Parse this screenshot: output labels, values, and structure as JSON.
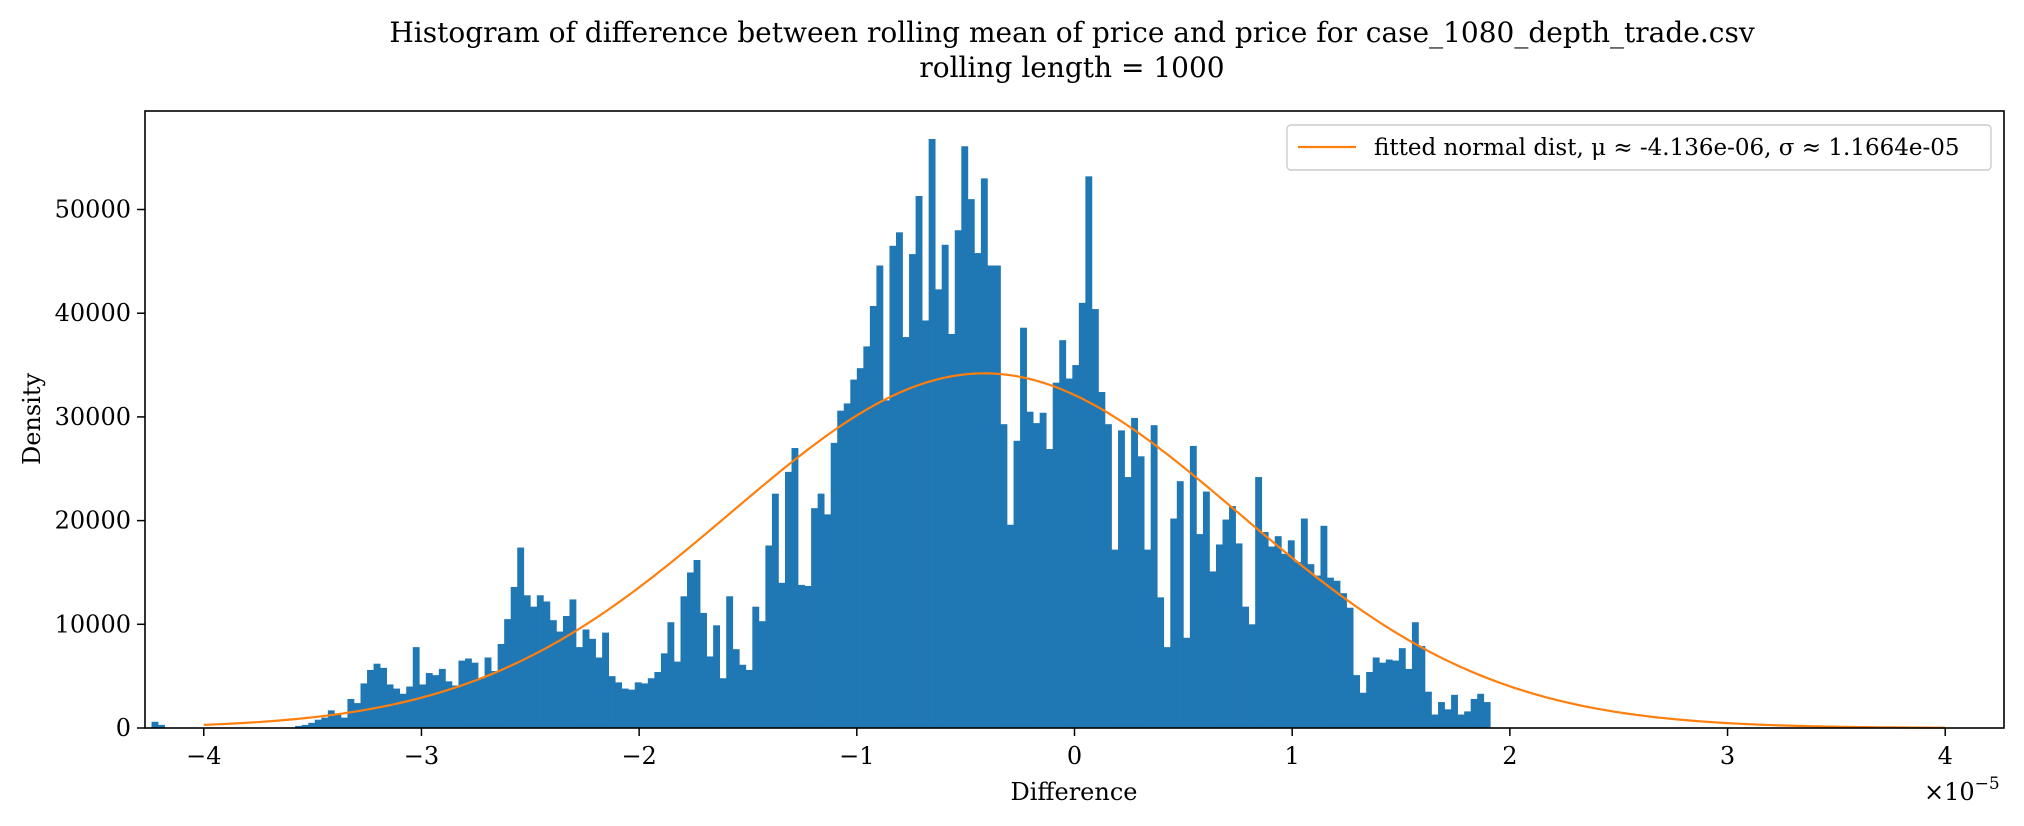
{
  "chart_data": {
    "type": "bar",
    "title": "Histogram of difference between rolling mean of price and price for case_1080_depth_trade.csv",
    "subtitle": "rolling length = 1000",
    "xlabel": "Difference",
    "ylabel": "Density",
    "x_offset_label": "×10",
    "x_offset_exponent": "−5",
    "xlim": [
      -4.27,
      4.27
    ],
    "ylim": [
      0,
      59500
    ],
    "x_ticks": [
      -4,
      -3,
      -2,
      -1,
      0,
      1,
      2,
      3,
      4
    ],
    "x_tick_labels": [
      "−4",
      "−3",
      "−2",
      "−1",
      "0",
      "1",
      "2",
      "3",
      "4"
    ],
    "y_ticks": [
      0,
      10000,
      20000,
      30000,
      40000,
      50000
    ],
    "y_tick_labels": [
      "0",
      "10000",
      "20000",
      "30000",
      "40000",
      "50000"
    ],
    "grid": false,
    "legend_position": "top-right",
    "histogram": {
      "color": "#1f77b4",
      "bin_start": -4.27,
      "bin_width": 0.03,
      "values": [
        0,
        600,
        300,
        0,
        0,
        0,
        0,
        0,
        0,
        0,
        0,
        0,
        0,
        0,
        0,
        0,
        0,
        0,
        0,
        0,
        0,
        0,
        0,
        200,
        300,
        500,
        800,
        1000,
        1700,
        1300,
        1000,
        2800,
        2400,
        4300,
        5600,
        6200,
        5800,
        4200,
        3800,
        3300,
        4000,
        7800,
        4200,
        5300,
        5100,
        5700,
        4500,
        4100,
        6500,
        6700,
        6300,
        4800,
        6800,
        5500,
        8100,
        10500,
        13600,
        17400,
        12800,
        11700,
        12800,
        12200,
        10400,
        9300,
        10800,
        12400,
        7800,
        9500,
        8600,
        6800,
        9200,
        5000,
        4400,
        3800,
        3700,
        4400,
        4300,
        4800,
        5400,
        7200,
        10200,
        6400,
        12700,
        15000,
        16200,
        11100,
        6900,
        9900,
        4800,
        12700,
        7600,
        6100,
        5600,
        11700,
        10300,
        17600,
        22600,
        14000,
        24700,
        27000,
        13800,
        13700,
        21200,
        22600,
        20600,
        27500,
        30600,
        31300,
        33600,
        34700,
        36800,
        40700,
        44600,
        31600,
        46500,
        47800,
        37700,
        45700,
        51300,
        39300,
        56800,
        42300,
        46600,
        38000,
        48000,
        56100,
        51000,
        45800,
        53000,
        44600,
        44600,
        29300,
        19600,
        27700,
        38600,
        30500,
        29400,
        30400,
        26900,
        33300,
        37400,
        33700,
        35000,
        41000,
        53200,
        40400,
        32400,
        29300,
        17200,
        28700,
        24200,
        29900,
        26200,
        17200,
        29200,
        12600,
        7800,
        20200,
        23800,
        8700,
        27200,
        18700,
        22800,
        15100,
        17700,
        20100,
        21400,
        17800,
        11700,
        10000,
        24200,
        18900,
        17500,
        18500,
        16800,
        18100,
        16000,
        20200,
        15800,
        14700,
        19500,
        14500,
        14200,
        13000,
        11600,
        5100,
        3400,
        5400,
        6800,
        6300,
        6600,
        6500,
        7700,
        5700,
        10200,
        7900,
        3500,
        1300,
        2500,
        1800,
        3200,
        1300,
        1600,
        2800,
        3300,
        2500
      ]
    },
    "fit_curve": {
      "type": "line",
      "color": "#ff7f0e",
      "name": "fitted normal dist, μ ≈ -4.136e-06, σ ≈ 1.1664e-05",
      "mu": -0.4136,
      "sigma": 1.1664,
      "peak": 34200,
      "x_range": [
        -4.0,
        4.0
      ]
    }
  }
}
